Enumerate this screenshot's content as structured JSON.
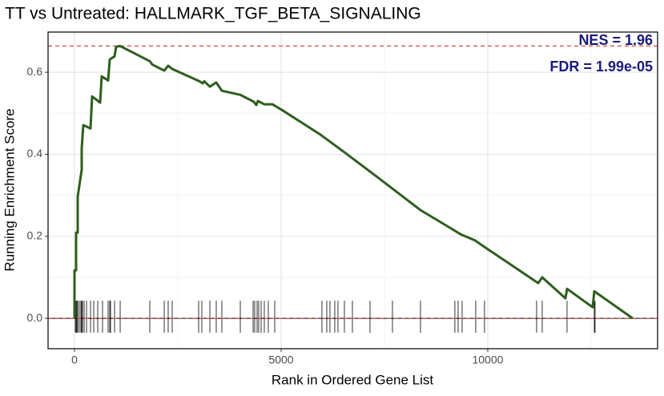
{
  "chart_data": {
    "type": "line",
    "title": "TT vs Untreated: HALLMARK_TGF_BETA_SIGNALING",
    "x_label": "Rank in Ordered Gene List",
    "y_label": "Running Enrichment Score",
    "annotations": [
      "NES = 1.96",
      "FDR = 1.99e-05"
    ],
    "xlim": [
      -640,
      14110
    ],
    "ylim": [
      -0.074,
      0.698
    ],
    "xticks": [
      0,
      5000,
      10000
    ],
    "yticks": [
      {
        "value": 0,
        "label": "0.0"
      },
      0.2,
      0.4,
      0.6
    ],
    "minor_xticks": [
      2500,
      7500,
      12500
    ],
    "minor_yticks": [
      0.1,
      0.3,
      0.5
    ],
    "grid": true,
    "reference_lines": [
      0.664,
      0
    ],
    "series": [
      {
        "color": "#2e5e1e",
        "x": [
          0,
          0,
          39,
          39,
          78,
          78,
          174,
          174,
          213,
          388,
          426,
          620,
          659,
          814,
          853,
          969,
          1008,
          1105,
          1822,
          1880,
          2016,
          2171,
          2267,
          2364,
          3023,
          3101,
          3140,
          3275,
          3430,
          3566,
          4012,
          4341,
          4399,
          4438,
          4593,
          4787,
          5019,
          5950,
          6531,
          7306,
          8372,
          9050,
          9341,
          9690,
          9922,
          11221,
          11318,
          11880,
          11919,
          12539,
          12578,
          13508
        ],
        "values": [
          0,
          0.117,
          0.117,
          0.209,
          0.209,
          0.297,
          0.362,
          0.414,
          0.471,
          0.463,
          0.541,
          0.526,
          0.59,
          0.58,
          0.631,
          0.639,
          0.662,
          0.664,
          0.627,
          0.619,
          0.612,
          0.604,
          0.616,
          0.608,
          0.578,
          0.573,
          0.578,
          0.565,
          0.575,
          0.555,
          0.545,
          0.528,
          0.52,
          0.53,
          0.522,
          0.522,
          0.508,
          0.448,
          0.405,
          0.346,
          0.264,
          0.223,
          0.205,
          0.19,
          0.174,
          0.086,
          0.1,
          0.049,
          0.072,
          0.027,
          0.066,
          0
        ]
      }
    ],
    "hits": [
      19,
      39,
      58,
      78,
      116,
      155,
      174,
      194,
      233,
      291,
      388,
      465,
      562,
      678,
      814,
      853,
      872,
      969,
      1105,
      1822,
      2171,
      2267,
      2364,
      3004,
      3081,
      3275,
      3430,
      3566,
      4012,
      4322,
      4360,
      4419,
      4457,
      4516,
      4593,
      4690,
      4845,
      5988,
      6105,
      6182,
      6298,
      6376,
      6531,
      6725,
      7151,
      7694,
      8372,
      9205,
      9283,
      9380,
      9709,
      9922,
      11182,
      11318,
      11919,
      12578,
      12597
    ]
  }
}
